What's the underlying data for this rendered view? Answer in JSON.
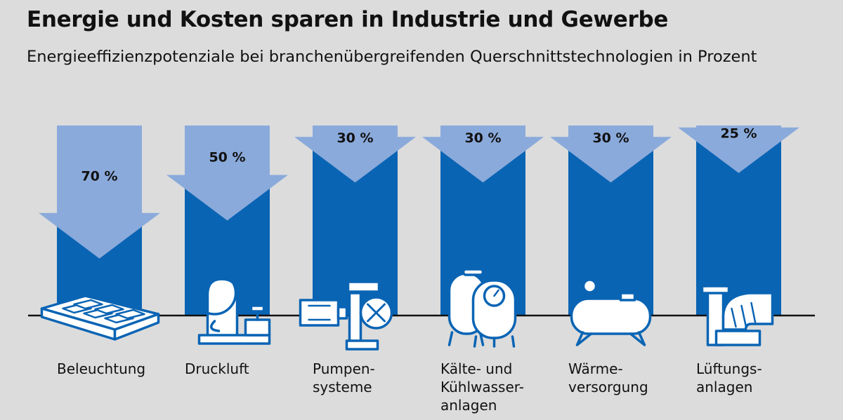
{
  "title": "Energie und Kosten sparen in Industrie und Gewerbe",
  "subtitle": "Energieeffizienzpotenziale bei branchenübergreifenden Querschnittstechnologien in Prozent",
  "colors": {
    "bar": "#0a64b4",
    "arrow": "#8aaadb",
    "background": "#dcdcdc",
    "icon_stroke": "#0a64b4",
    "icon_fill": "#ffffff"
  },
  "chart_data": {
    "type": "bar",
    "title": "Energie und Kosten sparen in Industrie und Gewerbe",
    "subtitle": "Energieeffizienzpotenziale bei branchenübergreifenden Querschnittstechnologien in Prozent",
    "unit": "%",
    "ylim": [
      0,
      100
    ],
    "categories": [
      "Beleuchtung",
      "Druckluft",
      "Pumpen-\nsysteme",
      "Kälte- und\nKühlwasser-\nanlagen",
      "Wärme-\nversorgung",
      "Lüftungs-\nanlagen"
    ],
    "values": [
      70,
      50,
      30,
      30,
      30,
      25
    ],
    "value_labels": [
      "70 %",
      "50 %",
      "30 %",
      "30 %",
      "30 %",
      "25 %"
    ],
    "icons": [
      "ceiling-light-icon",
      "compressor-icon",
      "pump-icon",
      "cooling-tank-icon",
      "boiler-tank-icon",
      "ventilation-duct-icon"
    ]
  }
}
